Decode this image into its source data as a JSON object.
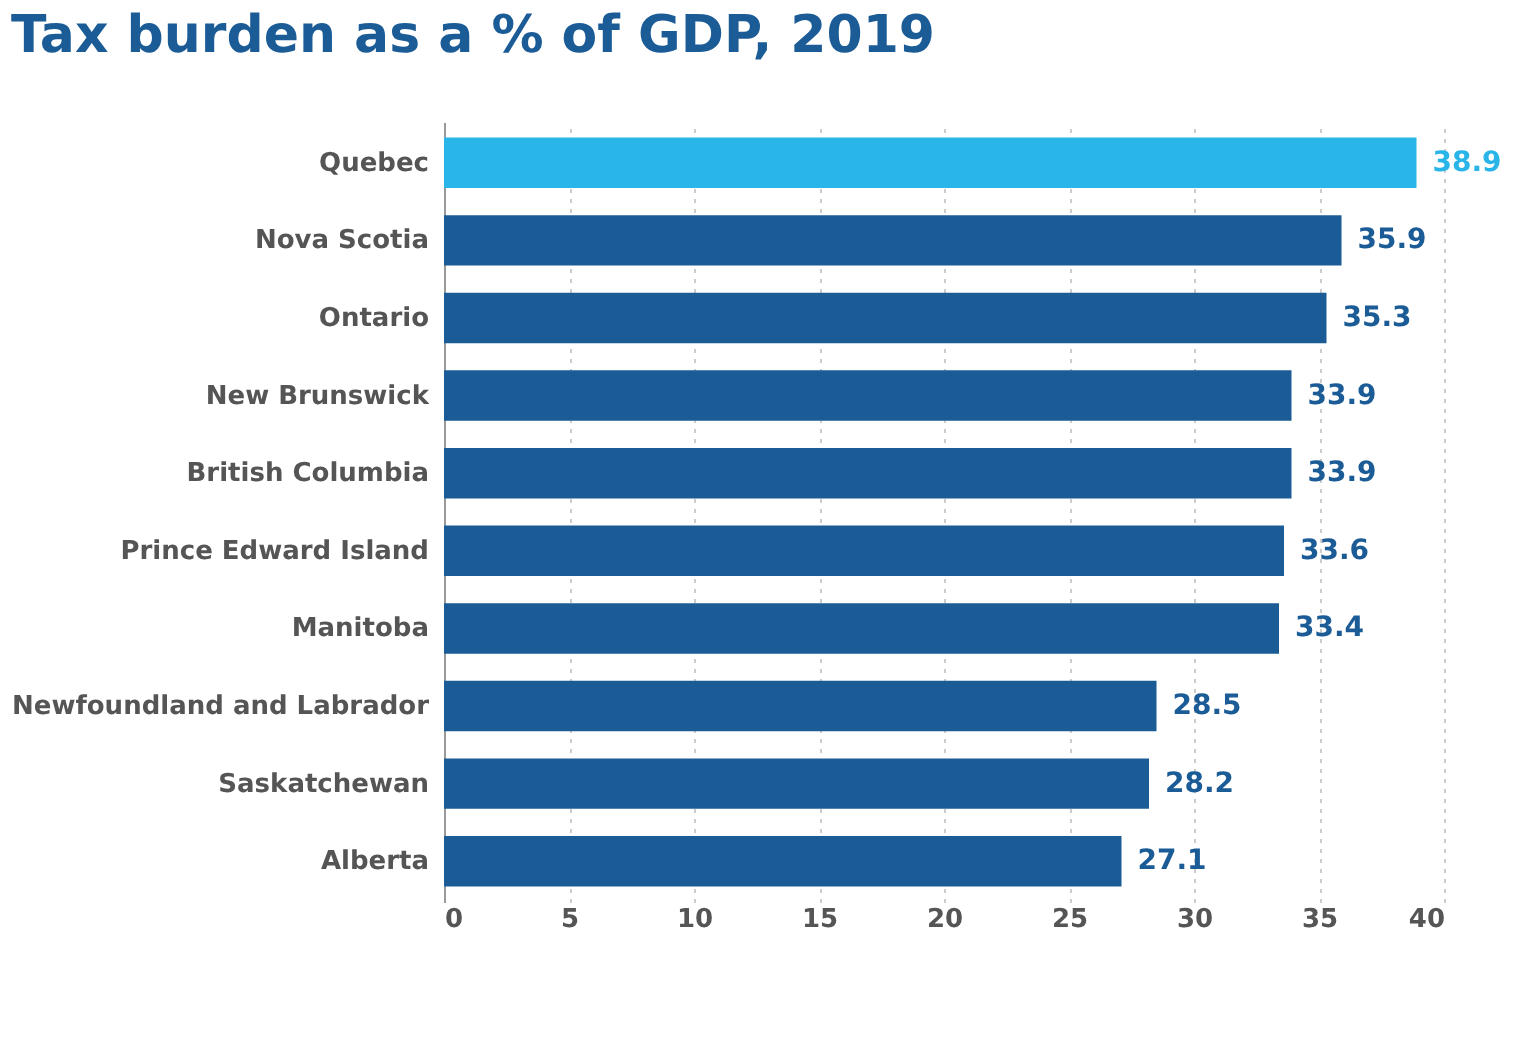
{
  "chart_data": {
    "type": "bar",
    "orientation": "horizontal",
    "title": "Tax burden as a % of GDP, 2019",
    "categories": [
      "Quebec",
      "Nova Scotia",
      "Ontario",
      "New Brunswick",
      "British Columbia",
      "Prince Edward Island",
      "Manitoba",
      "Newfoundland and Labrador",
      "Saskatchewan",
      "Alberta"
    ],
    "values": [
      38.9,
      35.9,
      35.3,
      33.9,
      33.9,
      33.6,
      33.4,
      28.5,
      28.2,
      27.1
    ],
    "colors": [
      "#29b5e8",
      "#1b5c97",
      "#1b5c97",
      "#1b5c97",
      "#1b5c97",
      "#1b5c97",
      "#1b5c97",
      "#1b5c97",
      "#1b5c97",
      "#1b5c97"
    ],
    "xlim": [
      0,
      40
    ],
    "xticks": [
      0,
      5,
      10,
      15,
      20,
      25,
      30,
      35,
      40
    ],
    "grid": "x",
    "data_labels": true
  }
}
